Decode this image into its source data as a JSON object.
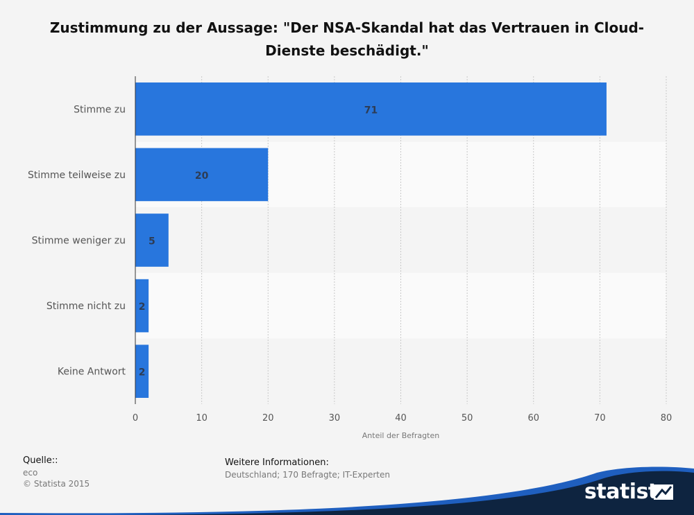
{
  "chart_data": {
    "type": "bar",
    "orientation": "horizontal",
    "title_line1": "Zustimmung zu der Aussage: \"Der NSA-Skandal hat das Vertrauen in Cloud-",
    "title_line2": "Dienste beschädigt.\"",
    "categories": [
      "Stimme zu",
      "Stimme teilweise zu",
      "Stimme weniger zu",
      "Stimme nicht zu",
      "Keine Antwort"
    ],
    "values": [
      71,
      20,
      5,
      2,
      2
    ],
    "xlabel": "Anteil der Befragten",
    "xlim": [
      0,
      80
    ],
    "xticks": [
      0,
      10,
      20,
      30,
      40,
      50,
      60,
      70,
      80
    ],
    "bar_color": "#2876dd",
    "grid": true
  },
  "footer": {
    "source_label": "Quelle::",
    "source_value": "eco",
    "copyright": "© Statista 2015",
    "info_label": "Weitere Informationen:",
    "info_value": "Deutschland; 170 Befragte; IT-Experten"
  },
  "brand": {
    "logo_text": "statista",
    "wave_color": "#1f5fbf",
    "dark_color": "#0e2440"
  }
}
